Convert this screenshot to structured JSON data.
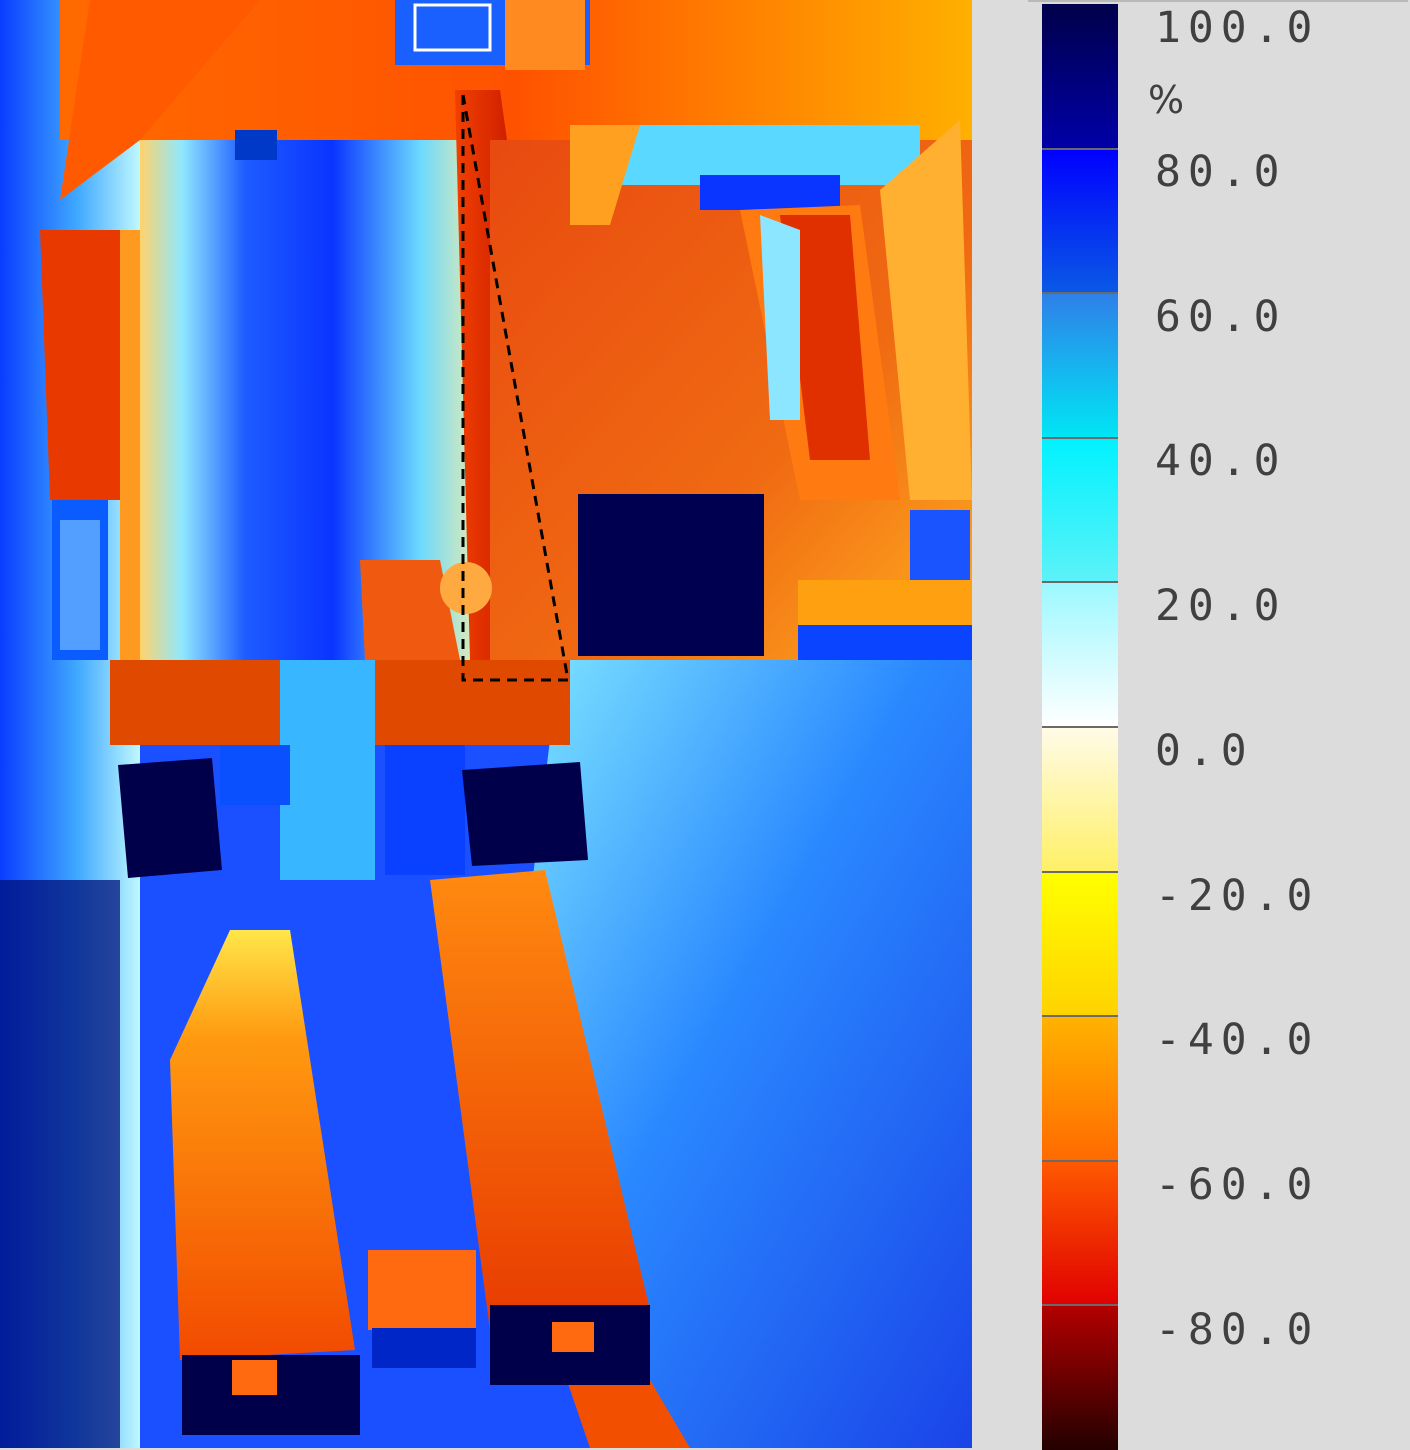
{
  "legend": {
    "unit": "%",
    "labels": [
      "100.0",
      "80.0",
      "60.0",
      "40.0",
      "20.0",
      "0.0",
      "-20.0",
      "-40.0",
      "-60.0",
      "-80.0"
    ],
    "colors": {
      "100_80": [
        "#00004a",
        "#0000a8"
      ],
      "80_60": [
        "#0000ff",
        "#0a5ae6"
      ],
      "60_40": [
        "#2f7fe8",
        "#00e6f5"
      ],
      "40_20": [
        "#00f2ff",
        "#5ef2f8"
      ],
      "20_0": [
        "#9cf8ff",
        "#ffffff"
      ],
      "0_m20": [
        "#fffbe8",
        "#fff066"
      ],
      "m20_m40": [
        "#ffff00",
        "#ffd200"
      ],
      "m40_m60": [
        "#ffb300",
        "#ff6a00"
      ],
      "m60_m80": [
        "#ff5a00",
        "#e00000"
      ],
      "m80_m100": [
        "#b40000",
        "#240000"
      ]
    }
  },
  "map": {
    "colors": {
      "deep_blue": "#00004a",
      "blue": "#0a3cff",
      "cyan": "#4ee0ff",
      "white": "#f4ffff",
      "yellow": "#ffe030",
      "orange": "#ff8a00",
      "red": "#f23a00",
      "dark_red": "#8a0000"
    }
  }
}
